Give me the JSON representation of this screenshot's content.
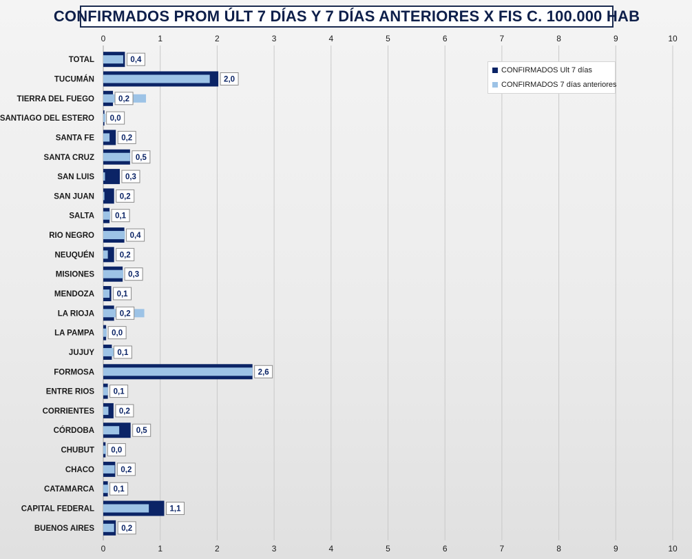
{
  "chart_data": {
    "type": "bar",
    "orientation": "horizontal",
    "title": "CONFIRMADOS PROM ÚLT 7 DÍAS Y 7 DÍAS ANTERIORES X FIS C. 100.000 HAB",
    "xlim": [
      0,
      10
    ],
    "x_ticks": [
      "0",
      "1",
      "2",
      "3",
      "4",
      "5",
      "6",
      "7",
      "8",
      "9",
      "10"
    ],
    "grid": true,
    "legend_position": "top-right",
    "categories": [
      "TOTAL",
      "TUCUMÁN",
      "TIERRA  DEL FUEGO",
      "SANTIAGO DEL ESTERO",
      "SANTA FE",
      "SANTA CRUZ",
      "SAN LUIS",
      "SAN JUAN",
      "SALTA",
      "RIO NEGRO",
      "NEUQUÉN",
      "MISIONES",
      "MENDOZA",
      "LA RIOJA",
      "LA PAMPA",
      "JUJUY",
      "FORMOSA",
      "ENTRE RIOS",
      "CORRIENTES",
      "CÓRDOBA",
      "CHUBUT",
      "CHACO",
      "CATAMARCA",
      "CAPITAL FEDERAL",
      "BUENOS AIRES"
    ],
    "series": [
      {
        "name": "CONFIRMADOS Ult 7 días",
        "color": "#0b2466",
        "values": [
          0.38,
          2.02,
          0.17,
          0.02,
          0.22,
          0.47,
          0.29,
          0.19,
          0.11,
          0.37,
          0.19,
          0.34,
          0.14,
          0.19,
          0.05,
          0.15,
          2.62,
          0.08,
          0.18,
          0.48,
          0.04,
          0.21,
          0.08,
          1.07,
          0.22
        ],
        "labels": [
          "0,4",
          "2,0",
          "0,2",
          "0,0",
          "0,2",
          "0,5",
          "0,3",
          "0,2",
          "0,1",
          "0,4",
          "0,2",
          "0,3",
          "0,1",
          "0,2",
          "0,0",
          "0,1",
          "2,6",
          "0,1",
          "0,2",
          "0,5",
          "0,0",
          "0,2",
          "0,1",
          "1,1",
          "0,2"
        ]
      },
      {
        "name": "CONFIRMADOS 7 días anteriores",
        "color": "#9dc3e6",
        "values": [
          0.35,
          1.87,
          0.75,
          0.04,
          0.11,
          0.47,
          0.03,
          0.02,
          0.12,
          0.38,
          0.08,
          0.35,
          0.11,
          0.72,
          0.06,
          0.19,
          2.62,
          0.08,
          0.09,
          0.28,
          0.05,
          0.2,
          0.09,
          0.8,
          0.19
        ]
      }
    ]
  }
}
